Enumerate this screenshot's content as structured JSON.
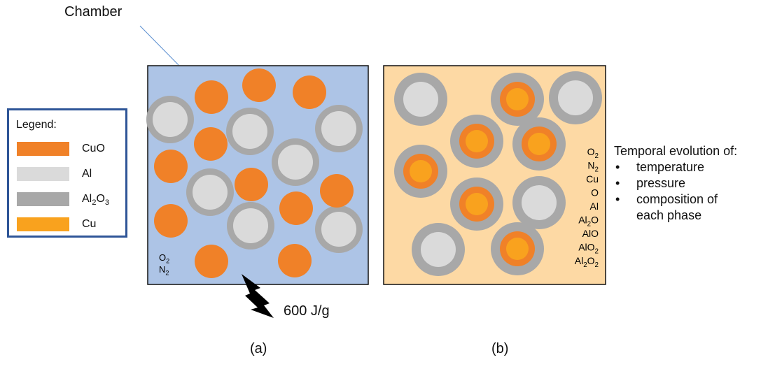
{
  "labels": {
    "chamber": "Chamber",
    "panel_a": "(a)",
    "panel_b": "(b)",
    "energy": "600 J/g"
  },
  "legend": {
    "title": "Legend:",
    "items": [
      {
        "base": "CuO",
        "color": "#f08128"
      },
      {
        "base": "Al",
        "color": "#dadada"
      },
      {
        "base": "Al2O3",
        "color": "#a8a8a8"
      },
      {
        "base": "Cu",
        "color": "#f9a21e"
      }
    ]
  },
  "panel_a": {
    "background": "#adc4e6",
    "gases": [
      "O2",
      "N2"
    ]
  },
  "panel_b": {
    "background": "#fdd9a4",
    "species": [
      "O2",
      "N2",
      "Cu",
      "O",
      "Al",
      "Al2O",
      "AlO",
      "AlO2",
      "Al2O2"
    ]
  },
  "evolution": {
    "title": "Temporal evolution of:",
    "items": [
      "temperature",
      "pressure",
      "composition of",
      "each phase"
    ]
  },
  "colors": {
    "cuo": "#f08128",
    "al": "#dadada",
    "al2o3": "#a8a8a8",
    "cu": "#f9a21e",
    "legend_border": "#2e5597"
  }
}
